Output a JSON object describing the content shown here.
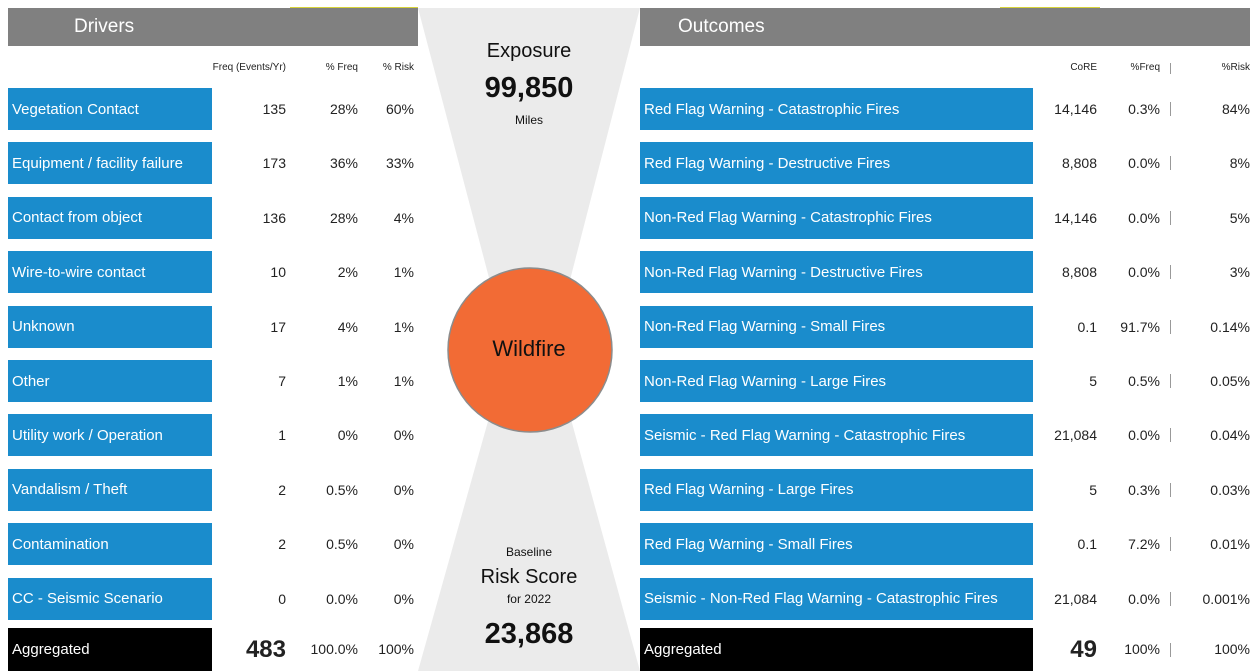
{
  "drivers": {
    "title": "Drivers",
    "columns": [
      "Freq (Events/Yr)",
      "% Freq",
      "% Risk"
    ],
    "rows": [
      [
        "Vegetation Contact",
        "135",
        "28%",
        "60%"
      ],
      [
        "Equipment / facility failure",
        "173",
        "36%",
        "33%"
      ],
      [
        "Contact from object",
        "136",
        "28%",
        "4%"
      ],
      [
        "Wire-to-wire contact",
        "10",
        "2%",
        "1%"
      ],
      [
        "Unknown",
        "17",
        "4%",
        "1%"
      ],
      [
        "Other",
        "7",
        "1%",
        "1%"
      ],
      [
        "Utility work / Operation",
        "1",
        "0%",
        "0%"
      ],
      [
        "Vandalism / Theft",
        "2",
        "0.5%",
        "0%"
      ],
      [
        "Contamination",
        "2",
        "0.5%",
        "0%"
      ],
      [
        "CC - Seismic Scenario",
        "0",
        "0.0%",
        "0%"
      ]
    ],
    "aggregated": [
      "Aggregated",
      "483",
      "100.0%",
      "100%"
    ]
  },
  "center": {
    "exposure_title": "Exposure",
    "exposure_value": "99,850",
    "exposure_unit": "Miles",
    "event": "Wildfire",
    "baseline": "Baseline",
    "risk_score": "Risk Score",
    "year": "for 2022",
    "risk_value": "23,868"
  },
  "outcomes": {
    "title": "Outcomes",
    "columns": [
      "CoRE",
      "%Freq",
      "%Risk"
    ],
    "rows": [
      [
        "Red Flag Warning - Catastrophic Fires",
        "14,146",
        "0.3%",
        "84%"
      ],
      [
        "Red Flag Warning - Destructive Fires",
        "8,808",
        "0.0%",
        "8%"
      ],
      [
        "Non-Red Flag Warning - Catastrophic Fires",
        "14,146",
        "0.0%",
        "5%"
      ],
      [
        "Non-Red Flag Warning - Destructive Fires",
        "8,808",
        "0.0%",
        "3%"
      ],
      [
        "Non-Red Flag Warning - Small Fires",
        "0.1",
        "91.7%",
        "0.14%"
      ],
      [
        "Non-Red Flag Warning - Large Fires",
        "5",
        "0.5%",
        "0.05%"
      ],
      [
        "Seismic - Red Flag Warning - Catastrophic Fires",
        "21,084",
        "0.0%",
        "0.04%"
      ],
      [
        "Red Flag Warning - Large Fires",
        "5",
        "0.3%",
        "0.03%"
      ],
      [
        "Red Flag Warning - Small Fires",
        "0.1",
        "7.2%",
        "0.01%"
      ],
      [
        "Seismic - Non-Red Flag Warning - Catastrophic Fires",
        "21,084",
        "0.0%",
        "0.001%"
      ]
    ],
    "aggregated": [
      "Aggregated",
      "49",
      "100%",
      "100%"
    ]
  }
}
